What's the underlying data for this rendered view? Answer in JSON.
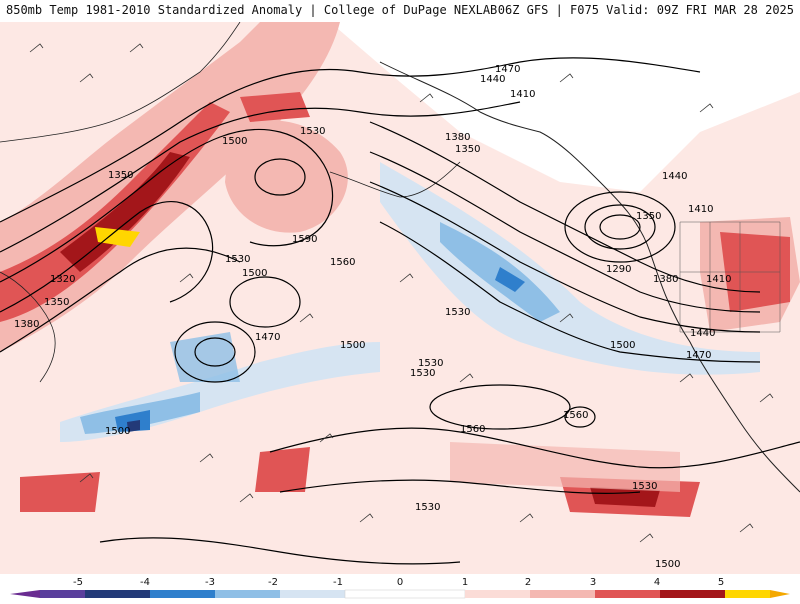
{
  "header": {
    "title": "850mb Temp 1981-2010 Standardized Anomaly | College of DuPage NEXLAB",
    "run": "06Z GFS | F075 Valid: 09Z FRI MAR 28 2025"
  },
  "colors": {
    "strong_positive": "#a3161a",
    "positive": "#e05555",
    "weak_positive": "#f4b8b2",
    "slight_positive": "#fbdcd7",
    "slight_negative": "#d6e4f2",
    "negative": "#8fbfe6",
    "strong_negative": "#2f7fcc",
    "extreme_negative": "#233a78",
    "extreme_positive": "#ffd600"
  },
  "contour_labels": [
    "1470",
    "1440",
    "1410",
    "1380",
    "1350",
    "1530",
    "1500",
    "1590",
    "1560",
    "1530",
    "1500",
    "1350",
    "1320",
    "1350",
    "1380",
    "1470",
    "1500",
    "1530",
    "1530",
    "1560",
    "1560",
    "1530",
    "1530",
    "1500",
    "1500",
    "1290",
    "1350",
    "1410",
    "1440",
    "1410",
    "1380",
    "1440",
    "1470",
    "1500",
    "1500",
    "1530"
  ],
  "legend": {
    "ticks": [
      "-5",
      "-4",
      "-3",
      "-2",
      "-1",
      "0",
      "1",
      "2",
      "3",
      "4",
      "5"
    ]
  }
}
